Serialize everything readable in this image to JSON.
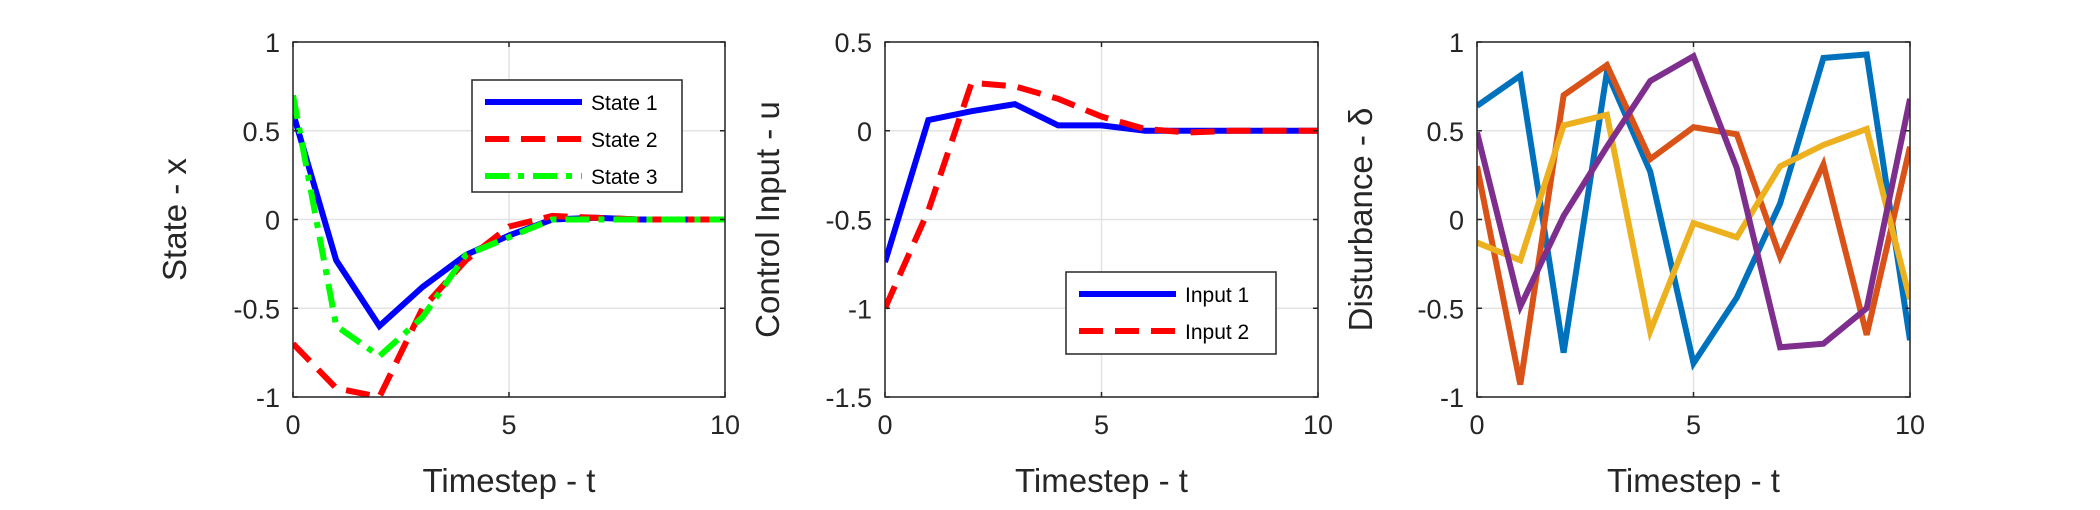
{
  "chart_data": [
    {
      "type": "line",
      "xlabel": "Timestep - t",
      "ylabel": "State - x",
      "xlim": [
        0,
        10
      ],
      "ylim": [
        -1,
        1
      ],
      "xticks": [
        "0",
        "5",
        "10"
      ],
      "yticks": [
        "-1",
        "-0.5",
        "0",
        "0.5",
        "1"
      ],
      "grid": true,
      "legend_position": "top-right",
      "x": [
        0,
        1,
        2,
        3,
        4,
        5,
        6,
        7,
        8,
        9,
        10
      ],
      "series": [
        {
          "name": "State 1",
          "color": "#0000ff",
          "style": "solid",
          "values": [
            0.6,
            -0.23,
            -0.6,
            -0.38,
            -0.2,
            -0.09,
            0.0,
            0.01,
            0.0,
            0.0,
            0.0
          ]
        },
        {
          "name": "State 2",
          "color": "#ff0000",
          "style": "dashed",
          "values": [
            -0.7,
            -0.95,
            -1.0,
            -0.5,
            -0.23,
            -0.04,
            0.02,
            0.01,
            0.0,
            0.0,
            0.0
          ]
        },
        {
          "name": "State 3",
          "color": "#00ff00",
          "style": "dashdot",
          "values": [
            0.7,
            -0.6,
            -0.77,
            -0.55,
            -0.2,
            -0.1,
            0.0,
            0.0,
            0.0,
            0.0,
            0.0
          ]
        }
      ]
    },
    {
      "type": "line",
      "xlabel": "Timestep - t",
      "ylabel": "Control Input - u",
      "xlim": [
        0,
        10
      ],
      "ylim": [
        -1.5,
        0.5
      ],
      "xticks": [
        "0",
        "5",
        "10"
      ],
      "yticks": [
        "-1.5",
        "-1",
        "-0.5",
        "0",
        "0.5"
      ],
      "grid": true,
      "legend_position": "bottom-right",
      "x": [
        0,
        1,
        2,
        3,
        4,
        5,
        6,
        7,
        8,
        9,
        10
      ],
      "series": [
        {
          "name": "Input 1",
          "color": "#0000ff",
          "style": "solid",
          "values": [
            -0.74,
            0.06,
            0.11,
            0.15,
            0.03,
            0.03,
            0.0,
            0.0,
            0.0,
            0.0,
            0.0
          ]
        },
        {
          "name": "Input 2",
          "color": "#ff0000",
          "style": "dashed",
          "values": [
            -1.0,
            -0.45,
            0.27,
            0.25,
            0.18,
            0.08,
            0.01,
            -0.01,
            0.0,
            0.0,
            0.0
          ]
        }
      ]
    },
    {
      "type": "line",
      "xlabel": "Timestep - t",
      "ylabel": "Disturbance - δ",
      "xlim": [
        0,
        10
      ],
      "ylim": [
        -1,
        1
      ],
      "xticks": [
        "0",
        "5",
        "10"
      ],
      "yticks": [
        "-1",
        "-0.5",
        "0",
        "0.5",
        "1"
      ],
      "grid": true,
      "x": [
        0,
        1,
        2,
        3,
        4,
        5,
        6,
        7,
        8,
        9,
        10
      ],
      "series": [
        {
          "color": "#0072bd",
          "style": "solid",
          "values": [
            0.64,
            0.81,
            -0.75,
            0.83,
            0.27,
            -0.81,
            -0.44,
            0.09,
            0.91,
            0.93,
            -0.68
          ]
        },
        {
          "color": "#d95319",
          "style": "solid",
          "values": [
            0.3,
            -0.93,
            0.7,
            0.87,
            0.34,
            0.52,
            0.48,
            -0.21,
            0.31,
            -0.65,
            0.41
          ]
        },
        {
          "color": "#edb120",
          "style": "solid",
          "values": [
            -0.13,
            -0.23,
            0.53,
            0.59,
            -0.63,
            -0.02,
            -0.1,
            0.3,
            0.42,
            0.51,
            -0.45
          ]
        },
        {
          "color": "#7e2f8e",
          "style": "solid",
          "values": [
            0.49,
            -0.49,
            0.02,
            0.41,
            0.78,
            0.92,
            0.29,
            -0.72,
            -0.7,
            -0.5,
            0.68
          ]
        }
      ]
    }
  ]
}
